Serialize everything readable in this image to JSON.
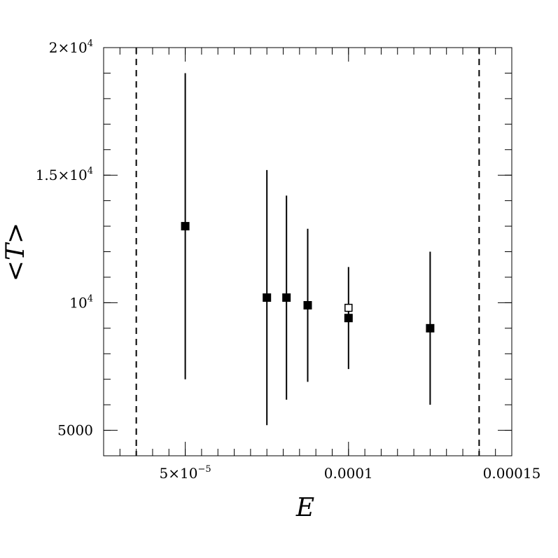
{
  "chart_data": {
    "type": "scatter",
    "xlabel": "E",
    "ylabel": "<T>",
    "xlim": [
      2.5e-05,
      0.00015
    ],
    "ylim": [
      4000,
      20000
    ],
    "x_ticks": [
      {
        "value": 5e-05,
        "mantissa": "5×10",
        "exp": "−5"
      },
      {
        "value": 0.0001,
        "mantissa": "0.0001",
        "exp": ""
      },
      {
        "value": 0.00015,
        "mantissa": "0.00015",
        "exp": ""
      }
    ],
    "y_ticks": [
      {
        "value": 5000,
        "mantissa": "5000",
        "exp": ""
      },
      {
        "value": 10000,
        "mantissa": "10",
        "exp": "4"
      },
      {
        "value": 15000,
        "mantissa": "1.5×10",
        "exp": "4"
      },
      {
        "value": 20000,
        "mantissa": "2×10",
        "exp": "4"
      }
    ],
    "x_minor_step": 5e-06,
    "y_minor_step": 1000,
    "reference_lines_x": [
      3.5e-05,
      0.00014
    ],
    "series": [
      {
        "marker": "filled-square",
        "points": [
          {
            "x": 5e-05,
            "y": 13000,
            "ylo": 7000,
            "yhi": 19000
          },
          {
            "x": 7.5e-05,
            "y": 10200,
            "ylo": 5200,
            "yhi": 15200
          },
          {
            "x": 8.1e-05,
            "y": 10200,
            "ylo": 6200,
            "yhi": 14200
          },
          {
            "x": 8.75e-05,
            "y": 9900,
            "ylo": 6900,
            "yhi": 12900
          },
          {
            "x": 0.0001,
            "y": 9400,
            "ylo": 7400,
            "yhi": 11400
          },
          {
            "x": 0.000125,
            "y": 9000,
            "ylo": 6000,
            "yhi": 12000
          }
        ]
      },
      {
        "marker": "open-square",
        "points": [
          {
            "x": 0.0001,
            "y": 9800
          }
        ]
      }
    ]
  }
}
